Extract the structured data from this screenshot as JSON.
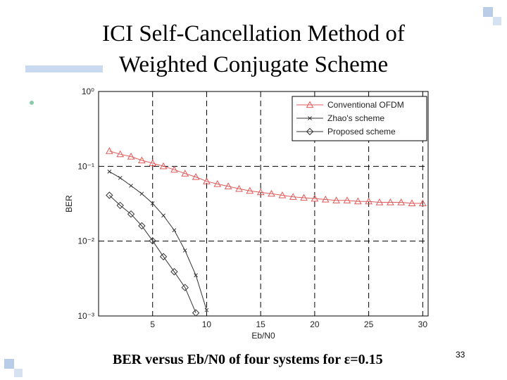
{
  "slide": {
    "title_lines": [
      "ICI Self-Cancellation Method of",
      "Weighted Conjugate Scheme"
    ],
    "caption": "BER versus Eb/N0 of four systems for ε=0.15",
    "page_number": "33"
  },
  "chart_data": {
    "type": "line",
    "xlabel": "Eb/N0",
    "ylabel": "BER",
    "xlim": [
      0,
      30.5
    ],
    "xticks": [
      5,
      10,
      15,
      20,
      25,
      30
    ],
    "ylim": [
      0.001,
      1
    ],
    "log_y": true,
    "yticks": [
      {
        "value": 1,
        "label": "10⁰"
      },
      {
        "value": 0.1,
        "label": "10⁻¹"
      },
      {
        "value": 0.01,
        "label": "10⁻²"
      },
      {
        "value": 0.001,
        "label": "10⁻³"
      }
    ],
    "grid": true,
    "legend": "upper right",
    "series": [
      {
        "name": "Conventional OFDM",
        "color": "#e05a5a",
        "marker": "triangle",
        "x": [
          1,
          2,
          3,
          4,
          5,
          6,
          7,
          8,
          9,
          10,
          11,
          12,
          13,
          14,
          15,
          16,
          17,
          18,
          19,
          20,
          21,
          22,
          23,
          24,
          25,
          26,
          27,
          28,
          29,
          30
        ],
        "values": [
          0.16,
          0.145,
          0.135,
          0.12,
          0.11,
          0.1,
          0.09,
          0.08,
          0.072,
          0.063,
          0.058,
          0.054,
          0.05,
          0.047,
          0.045,
          0.043,
          0.041,
          0.039,
          0.038,
          0.037,
          0.036,
          0.035,
          0.035,
          0.034,
          0.034,
          0.033,
          0.033,
          0.033,
          0.032,
          0.032
        ]
      },
      {
        "name": "Zhao's scheme",
        "color": "#333333",
        "marker": "x",
        "x": [
          1,
          2,
          3,
          4,
          5,
          6,
          7,
          8,
          9,
          10
        ],
        "values": [
          0.085,
          0.07,
          0.055,
          0.043,
          0.032,
          0.022,
          0.014,
          0.0075,
          0.0035,
          0.0012
        ]
      },
      {
        "name": "Proposed scheme",
        "color": "#333333",
        "marker": "diamond",
        "x": [
          1,
          2,
          3,
          4,
          5,
          6,
          7,
          8,
          9
        ],
        "values": [
          0.041,
          0.03,
          0.023,
          0.016,
          0.0101,
          0.0062,
          0.0039,
          0.0024,
          0.0011
        ]
      }
    ]
  }
}
